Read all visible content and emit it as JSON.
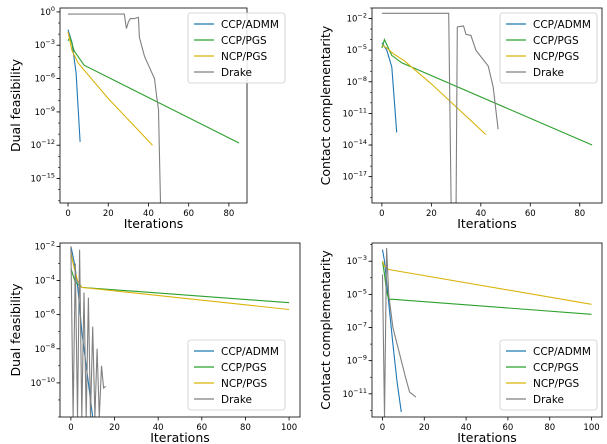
{
  "colors": {
    "CCP/ADMM": "#1f77b4",
    "CCP/PGS": "#2ca02c",
    "NCP/PGS": "#dbb40c",
    "Drake": "#808080"
  },
  "chart_data": [
    {
      "type": "line",
      "xlabel": "Iterations",
      "ylabel": "Dual feasibility",
      "yscale": "log",
      "xlim": [
        -4,
        89
      ],
      "ylim_exp": [
        -17.2,
        0.35
      ],
      "xticks": [
        0,
        20,
        40,
        60,
        80
      ],
      "yticks": [
        {
          "exp": 0,
          "label": "10^0"
        },
        {
          "exp": -3,
          "label": "10^-3"
        },
        {
          "exp": -6,
          "label": "10^-6"
        },
        {
          "exp": -9,
          "label": "10^-9"
        },
        {
          "exp": -12,
          "label": "10^-12"
        },
        {
          "exp": -15,
          "label": "10^-15"
        }
      ],
      "legend": "top-right",
      "series": [
        {
          "name": "CCP/ADMM",
          "points": [
            [
              0,
              -1.6
            ],
            [
              2,
              -2.8
            ],
            [
              4,
              -5.5
            ],
            [
              6,
              -11.7
            ]
          ]
        },
        {
          "name": "CCP/PGS",
          "points": [
            [
              0,
              -2.6
            ],
            [
              1,
              -2.3
            ],
            [
              3,
              -3.5
            ],
            [
              8,
              -4.8
            ],
            [
              85,
              -11.8
            ]
          ]
        },
        {
          "name": "NCP/PGS",
          "points": [
            [
              0,
              -1.8
            ],
            [
              2,
              -3.5
            ],
            [
              5,
              -4.6
            ],
            [
              20,
              -7.8
            ],
            [
              42,
              -12.0
            ]
          ]
        },
        {
          "name": "Drake",
          "points": [
            [
              0,
              -0.2
            ],
            [
              28,
              -0.2
            ],
            [
              29,
              -1.5
            ],
            [
              30,
              -0.9
            ],
            [
              31,
              -0.6
            ],
            [
              33,
              -0.6
            ],
            [
              35,
              -0.5
            ],
            [
              35.5,
              -2.3
            ],
            [
              38,
              -4.0
            ],
            [
              43,
              -6.0
            ],
            [
              44,
              -7.5
            ],
            [
              45,
              -8.8
            ],
            [
              46,
              -17.2
            ],
            [
              47,
              -17.2
            ]
          ]
        }
      ]
    },
    {
      "type": "line",
      "xlabel": "Iterations",
      "ylabel": "Contact complementarity",
      "yscale": "log",
      "xlim": [
        -4,
        89
      ],
      "ylim_exp": [
        -19.5,
        -1.0
      ],
      "xticks": [
        0,
        20,
        40,
        60,
        80
      ],
      "yticks": [
        {
          "exp": -2,
          "label": "10^-2"
        },
        {
          "exp": -5,
          "label": "10^-5"
        },
        {
          "exp": -8,
          "label": "10^-8"
        },
        {
          "exp": -11,
          "label": "10^-11"
        },
        {
          "exp": -14,
          "label": "10^-14"
        },
        {
          "exp": -17,
          "label": "10^-17"
        }
      ],
      "legend": "top-right",
      "series": [
        {
          "name": "CCP/ADMM",
          "points": [
            [
              0,
              -4.3
            ],
            [
              2,
              -5.0
            ],
            [
              4,
              -6.6
            ],
            [
              6,
              -12.8
            ]
          ]
        },
        {
          "name": "CCP/PGS",
          "points": [
            [
              0,
              -4.8
            ],
            [
              1,
              -4.0
            ],
            [
              4,
              -5.5
            ],
            [
              8,
              -6.2
            ],
            [
              85,
              -14.0
            ]
          ]
        },
        {
          "name": "NCP/PGS",
          "points": [
            [
              0,
              -4.5
            ],
            [
              2,
              -4.8
            ],
            [
              5,
              -5.4
            ],
            [
              9,
              -6.0
            ],
            [
              20,
              -8.2
            ],
            [
              42,
              -13.0
            ]
          ]
        },
        {
          "name": "Drake",
          "points": [
            [
              0,
              -1.5
            ],
            [
              27,
              -1.5
            ],
            [
              28,
              -19.5
            ],
            [
              30,
              -19.5
            ],
            [
              30.5,
              -2.8
            ],
            [
              33,
              -2.7
            ],
            [
              34,
              -3.5
            ],
            [
              36,
              -3.6
            ],
            [
              38,
              -5.0
            ],
            [
              43,
              -6.5
            ],
            [
              45,
              -8.5
            ],
            [
              47,
              -12.5
            ]
          ]
        }
      ]
    },
    {
      "type": "line",
      "xlabel": "Iterations",
      "ylabel": "Dual feasibility",
      "yscale": "log",
      "xlim": [
        -5,
        105
      ],
      "ylim_exp": [
        -12.0,
        -1.8
      ],
      "xticks": [
        0,
        20,
        40,
        60,
        80,
        100
      ],
      "yticks": [
        {
          "exp": -2,
          "label": "10^-2"
        },
        {
          "exp": -4,
          "label": "10^-4"
        },
        {
          "exp": -6,
          "label": "10^-6"
        },
        {
          "exp": -8,
          "label": "10^-8"
        },
        {
          "exp": -10,
          "label": "10^-10"
        }
      ],
      "legend": "bottom-right",
      "series": [
        {
          "name": "CCP/ADMM",
          "points": [
            [
              0,
              -2.0
            ],
            [
              1,
              -2.6
            ],
            [
              2,
              -3.3
            ],
            [
              3,
              -4.3
            ],
            [
              4,
              -5.5
            ],
            [
              5,
              -7.0
            ],
            [
              6,
              -8.0
            ],
            [
              7,
              -9.0
            ],
            [
              8,
              -10.0
            ],
            [
              9,
              -11.0
            ],
            [
              10,
              -12.0
            ]
          ]
        },
        {
          "name": "CCP/PGS",
          "points": [
            [
              0,
              -3.3
            ],
            [
              2,
              -4.1
            ],
            [
              5,
              -4.4
            ],
            [
              100,
              -5.3
            ]
          ]
        },
        {
          "name": "NCP/PGS",
          "points": [
            [
              0,
              -2.3
            ],
            [
              1,
              -3.0
            ],
            [
              3,
              -4.0
            ],
            [
              5,
              -4.4
            ],
            [
              100,
              -5.7
            ]
          ]
        },
        {
          "name": "Drake",
          "points": [
            [
              0,
              -2.0
            ],
            [
              1,
              -12.0
            ],
            [
              2,
              -3.0
            ],
            [
              3,
              -12.0
            ],
            [
              4,
              -2.2
            ],
            [
              5,
              -12.0
            ],
            [
              6,
              -4.7
            ],
            [
              7,
              -12.0
            ],
            [
              8,
              -5.0
            ],
            [
              9,
              -12.0
            ],
            [
              10,
              -6.7
            ],
            [
              11,
              -12.0
            ],
            [
              12,
              -8.0
            ],
            [
              13,
              -12.0
            ],
            [
              14,
              -9.0
            ],
            [
              15,
              -10.3
            ],
            [
              16,
              -10.2
            ]
          ]
        }
      ]
    },
    {
      "type": "line",
      "xlabel": "Iterations",
      "ylabel": "Contact complementarity",
      "yscale": "log",
      "xlim": [
        -5,
        105
      ],
      "ylim_exp": [
        -12.4,
        -1.9
      ],
      "xticks": [
        0,
        20,
        40,
        60,
        80,
        100
      ],
      "yticks": [
        {
          "exp": -3,
          "label": "10^-3"
        },
        {
          "exp": -5,
          "label": "10^-5"
        },
        {
          "exp": -7,
          "label": "10^-7"
        },
        {
          "exp": -9,
          "label": "10^-9"
        },
        {
          "exp": -11,
          "label": "10^-11"
        }
      ],
      "legend": "bottom-right",
      "series": [
        {
          "name": "CCP/ADMM",
          "points": [
            [
              0,
              -2.3
            ],
            [
              1,
              -3.0
            ],
            [
              3,
              -5.5
            ],
            [
              5,
              -8.0
            ],
            [
              7,
              -10.3
            ],
            [
              9,
              -12.1
            ]
          ]
        },
        {
          "name": "CCP/PGS",
          "points": [
            [
              0,
              -3.0
            ],
            [
              1,
              -3.8
            ],
            [
              2,
              -4.8
            ],
            [
              3,
              -5.3
            ],
            [
              5,
              -5.3
            ],
            [
              100,
              -6.2
            ]
          ]
        },
        {
          "name": "NCP/PGS",
          "points": [
            [
              0,
              -3.0
            ],
            [
              1,
              -3.3
            ],
            [
              3,
              -3.5
            ],
            [
              100,
              -5.6
            ]
          ]
        },
        {
          "name": "Drake",
          "points": [
            [
              0,
              -3.8
            ],
            [
              1,
              -12.4
            ],
            [
              2,
              -2.2
            ],
            [
              3,
              -5.0
            ],
            [
              5,
              -7.0
            ],
            [
              8,
              -8.5
            ],
            [
              11,
              -10.0
            ],
            [
              13,
              -10.9
            ],
            [
              16,
              -11.2
            ]
          ]
        }
      ]
    }
  ]
}
